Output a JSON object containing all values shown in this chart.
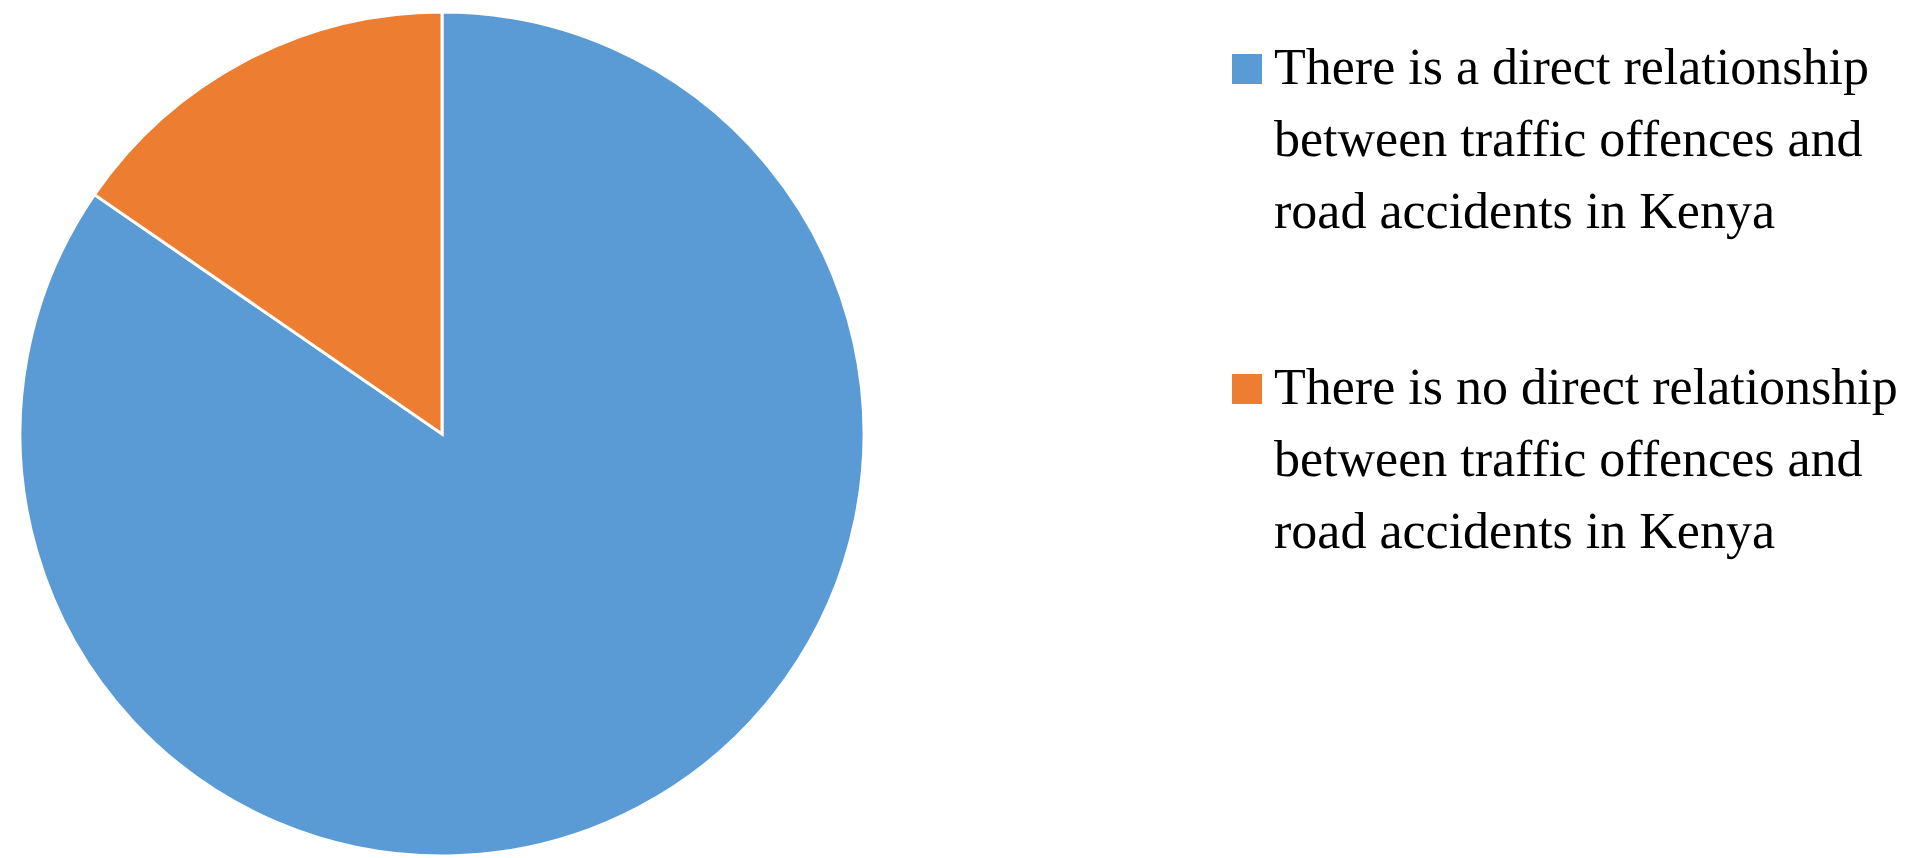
{
  "chart_data": {
    "type": "pie",
    "categories": [
      "There is a direct relationship between traffic offences and road accidents in Kenya",
      "There is no direct relationship between traffic offences and road accidents in Kenya"
    ],
    "values": [
      84.6,
      15.4
    ],
    "colors": [
      "#5b9bd5",
      "#ed7d31"
    ],
    "legend": "right"
  }
}
